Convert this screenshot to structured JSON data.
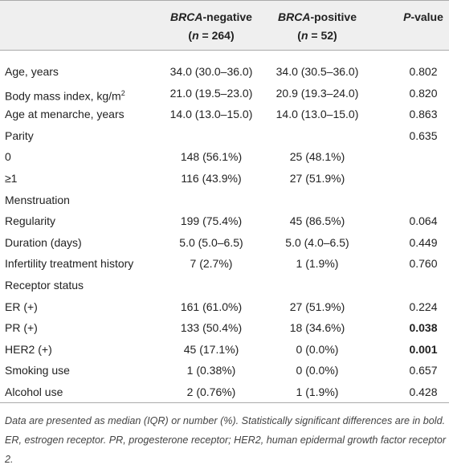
{
  "header": [
    {
      "line1": [
        "BRCA",
        "-negative"
      ],
      "line2": [
        "(",
        "n",
        " = 264)"
      ]
    },
    {
      "line1": [
        "BRCA",
        "-positive"
      ],
      "line2": [
        "(",
        "n",
        " = 52)"
      ]
    },
    {
      "line1": [
        "P",
        "-value"
      ]
    }
  ],
  "rows": [
    {
      "label": "Age, years",
      "neg": "34.0 (30.0–36.0)",
      "pos": "34.0 (30.5–36.0)",
      "p": "0.802"
    },
    {
      "label": "Body mass index, kg/m",
      "label_sup": "2",
      "neg": "21.0 (19.5–23.0)",
      "pos": "20.9 (19.3–24.0)",
      "p": "0.820"
    },
    {
      "label": "Age at menarche, years",
      "neg": "14.0 (13.0–15.0)",
      "pos": "14.0 (13.0–15.0)",
      "p": "0.863"
    },
    {
      "label": "Parity",
      "p": "0.635"
    },
    {
      "label": "0",
      "neg": "148 (56.1%)",
      "pos": "25 (48.1%)"
    },
    {
      "label": "≥1",
      "neg": "116 (43.9%)",
      "pos": "27 (51.9%)"
    },
    {
      "label": "Menstruation"
    },
    {
      "label": "Regularity",
      "neg": "199 (75.4%)",
      "pos": "45 (86.5%)",
      "p": "0.064"
    },
    {
      "label": "Duration (days)",
      "neg": "5.0 (5.0–6.5)",
      "pos": "5.0 (4.0–6.5)",
      "p": "0.449"
    },
    {
      "label": "Infertility treatment history",
      "neg": "7 (2.7%)",
      "pos": "1 (1.9%)",
      "p": "0.760"
    },
    {
      "label": "Receptor status"
    },
    {
      "label": "ER (+)",
      "neg": "161 (61.0%)",
      "pos": "27 (51.9%)",
      "p": "0.224"
    },
    {
      "label": "PR (+)",
      "neg": "133 (50.4%)",
      "pos": "18 (34.6%)",
      "p": "0.038"
    },
    {
      "label": "HER2 (+)",
      "neg": "45 (17.1%)",
      "pos": "0 (0.0%)",
      "p": "0.001"
    },
    {
      "label": "Smoking use",
      "neg": "1 (0.38%)",
      "pos": "0 (0.0%)",
      "p": "0.657"
    },
    {
      "label": "Alcohol use",
      "neg": "2 (0.76%)",
      "pos": "1 (1.9%)",
      "p": "0.428"
    }
  ],
  "footnote": "Data are presented as median (IQR) or number (%). Statistically significant differences are in bold. ER, estrogen receptor. PR, progesterone receptor; HER2, human epidermal growth factor receptor 2."
}
